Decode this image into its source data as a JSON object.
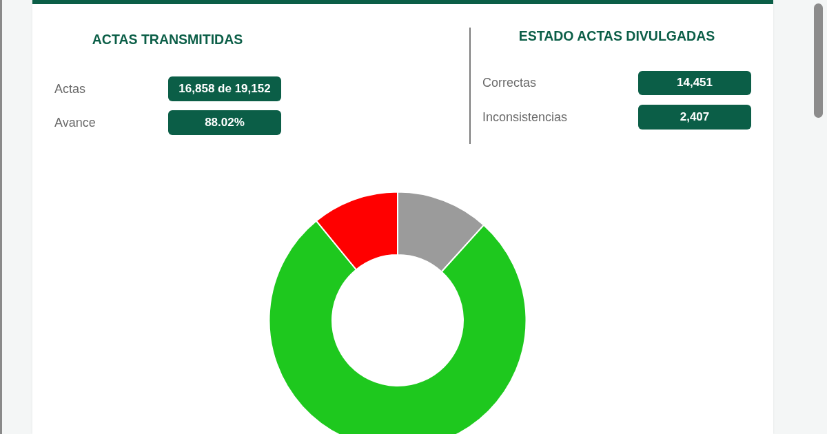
{
  "chart_data": [
    {
      "type": "other",
      "title": "ACTAS TRANSMITIDAS",
      "annotations": [
        "Actas",
        "16,858 de 19,152",
        "Avance",
        "88.02%"
      ]
    },
    {
      "type": "other",
      "title": "ESTADO ACTAS DIVULGADAS",
      "annotations": [
        "Correctas",
        "14,451",
        "Inconsistencias",
        "2,407"
      ]
    },
    {
      "type": "donut",
      "categories": [
        null,
        null,
        null
      ],
      "values": [
        11.7,
        77.4,
        10.9
      ],
      "colors": [
        "#9b9b9b",
        "#1ec81e",
        "#ff0000"
      ]
    }
  ]
}
